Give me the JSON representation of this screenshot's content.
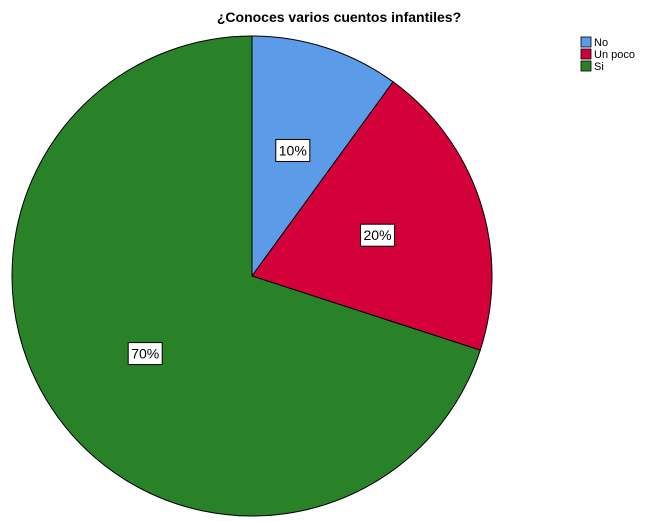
{
  "chart_data": {
    "type": "pie",
    "title": "¿Conoces varios cuentos infantiles?",
    "categories": [
      "No",
      "Un poco",
      "Si"
    ],
    "values": [
      10,
      20,
      70
    ],
    "data_labels": [
      "10%",
      "20%",
      "70%"
    ],
    "colors": [
      "#5b9be8",
      "#d4003a",
      "#2a8228"
    ],
    "start_angle": "12 o'clock",
    "direction": "clockwise",
    "legend_position": "top-right"
  }
}
